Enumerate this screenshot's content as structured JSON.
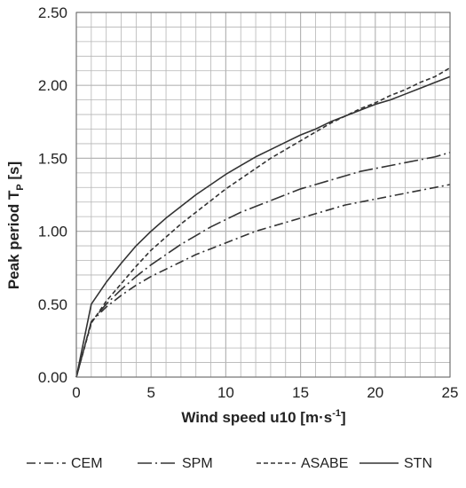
{
  "chart_data": {
    "type": "line",
    "x": [
      0,
      1,
      2,
      3,
      4,
      5,
      6,
      7,
      8,
      9,
      10,
      11,
      12,
      13,
      14,
      15,
      16,
      17,
      18,
      19,
      20,
      21,
      22,
      23,
      24,
      25
    ],
    "series": [
      {
        "name": "CEM",
        "dash": "dash-dot",
        "values": [
          0,
          0.38,
          0.48,
          0.56,
          0.63,
          0.69,
          0.74,
          0.79,
          0.84,
          0.88,
          0.92,
          0.96,
          1.0,
          1.03,
          1.06,
          1.09,
          1.12,
          1.15,
          1.18,
          1.2,
          1.22,
          1.24,
          1.26,
          1.28,
          1.3,
          1.32
        ]
      },
      {
        "name": "SPM",
        "dash": "dash-dot-long",
        "values": [
          0,
          0.38,
          0.5,
          0.6,
          0.69,
          0.77,
          0.84,
          0.91,
          0.97,
          1.03,
          1.08,
          1.13,
          1.17,
          1.21,
          1.25,
          1.29,
          1.32,
          1.35,
          1.38,
          1.41,
          1.43,
          1.45,
          1.47,
          1.49,
          1.51,
          1.54
        ]
      },
      {
        "name": "ASABE",
        "dash": "dashed",
        "values": [
          0,
          0.37,
          0.52,
          0.64,
          0.76,
          0.87,
          0.96,
          1.05,
          1.13,
          1.21,
          1.29,
          1.36,
          1.43,
          1.5,
          1.56,
          1.62,
          1.68,
          1.74,
          1.79,
          1.84,
          1.88,
          1.93,
          1.97,
          2.02,
          2.06,
          2.12
        ]
      },
      {
        "name": "STN",
        "dash": "solid",
        "values": [
          0,
          0.5,
          0.65,
          0.78,
          0.9,
          1.0,
          1.09,
          1.17,
          1.25,
          1.32,
          1.39,
          1.45,
          1.51,
          1.56,
          1.61,
          1.66,
          1.7,
          1.75,
          1.79,
          1.83,
          1.87,
          1.9,
          1.94,
          1.98,
          2.02,
          2.06
        ]
      }
    ],
    "xlabel": "Wind speed u10 [m·s⁻¹]",
    "xlabel_main": "Wind speed u10 [m·s",
    "xlabel_sup": "-1",
    "xlabel_end": "]",
    "ylabel": "Peak period Tₚ [s]",
    "ylabel_main": "Peak period T",
    "ylabel_sub": "P",
    "ylabel_end": " [s]",
    "xlim": [
      0,
      25
    ],
    "ylim": [
      0,
      2.5
    ],
    "xticks": [
      "0",
      "5",
      "10",
      "15",
      "20",
      "25"
    ],
    "yticks": [
      "0.00",
      "0.50",
      "1.00",
      "1.50",
      "2.00",
      "2.50"
    ],
    "grid": true,
    "legend_position": "bottom",
    "line_color": "#333333",
    "grid_color": "#b5b5b5"
  }
}
